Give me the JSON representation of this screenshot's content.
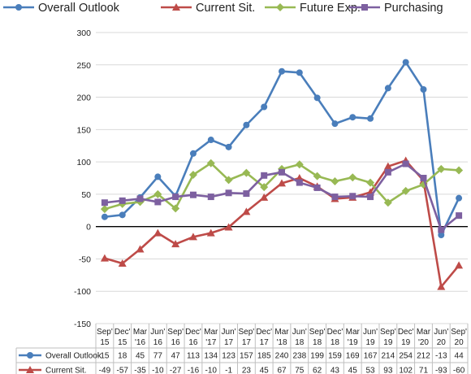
{
  "chart_data": {
    "type": "line",
    "categories": [
      [
        "Sep'",
        "15"
      ],
      [
        "Dec'",
        "15"
      ],
      [
        "Mar",
        "'16"
      ],
      [
        "Jun'",
        "16"
      ],
      [
        "Sep'",
        "16"
      ],
      [
        "Dec'",
        "16"
      ],
      [
        "Mar",
        "'17"
      ],
      [
        "Jun'",
        "17"
      ],
      [
        "Sep'",
        "17"
      ],
      [
        "Dec'",
        "17"
      ],
      [
        "Mar",
        "'18"
      ],
      [
        "Jun'",
        "18"
      ],
      [
        "Sep'",
        "18"
      ],
      [
        "Dec'",
        "18"
      ],
      [
        "Mar",
        "'19"
      ],
      [
        "Jun'",
        "19"
      ],
      [
        "Sep'",
        "19"
      ],
      [
        "Dec'",
        "19"
      ],
      [
        "Mar",
        "'20"
      ],
      [
        "Jun'",
        "20"
      ],
      [
        "Sep'",
        "20"
      ]
    ],
    "series": [
      {
        "name": "Overall Outlook",
        "color": "#4a7ebb",
        "marker": "circle",
        "values": [
          15,
          18,
          45,
          77,
          47,
          113,
          134,
          123,
          157,
          185,
          240,
          238,
          199,
          159,
          169,
          167,
          214,
          254,
          212,
          -13,
          44
        ]
      },
      {
        "name": "Current Sit.",
        "color": "#be4b48",
        "marker": "triangle",
        "values": [
          -49,
          -57,
          -35,
          -10,
          -27,
          -16,
          -10,
          -1,
          23,
          45,
          67,
          75,
          62,
          43,
          45,
          53,
          93,
          102,
          71,
          -93,
          -60
        ]
      },
      {
        "name": "Future Exp.",
        "color": "#98b954",
        "marker": "diamond",
        "values": [
          27,
          35,
          38,
          50,
          28,
          80,
          98,
          72,
          83,
          61,
          89,
          96,
          78,
          70,
          76,
          68,
          37,
          55,
          65,
          89,
          87
        ]
      },
      {
        "name": "Purchasing",
        "color": "#7d60a0",
        "marker": "square",
        "values": [
          37,
          40,
          43,
          38,
          46,
          49,
          46,
          52,
          51,
          79,
          84,
          68,
          60,
          46,
          47,
          46,
          84,
          97,
          75,
          -5,
          17
        ]
      }
    ],
    "table_series_shown": [
      "Overall Outlook",
      "Current Sit."
    ],
    "ylim": [
      -150,
      300
    ],
    "yticks": [
      300,
      250,
      200,
      150,
      100,
      50,
      0,
      -50,
      -100,
      -150
    ],
    "grid": true,
    "legend_position": "top"
  }
}
